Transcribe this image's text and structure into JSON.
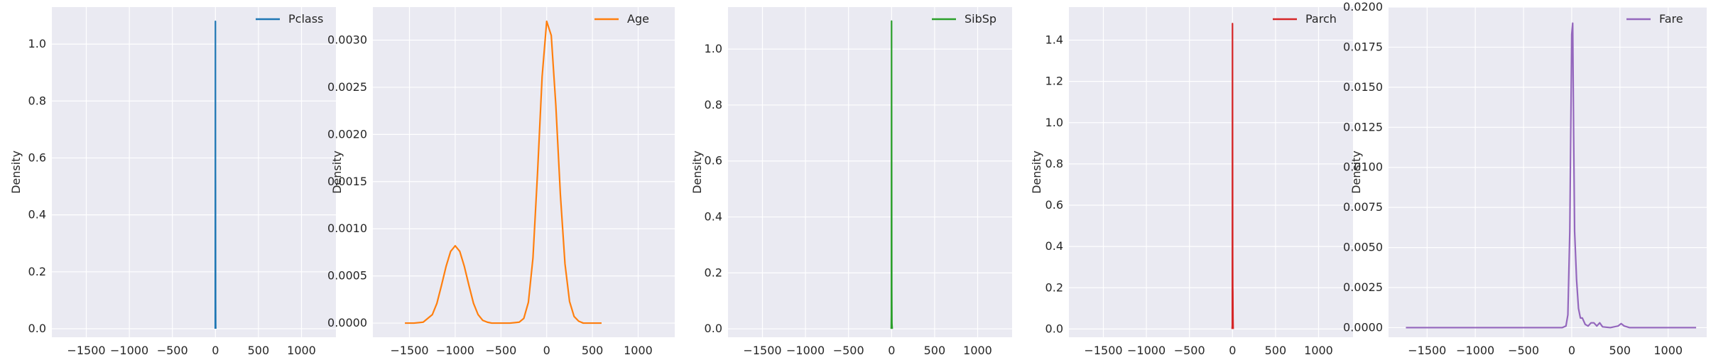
{
  "figure": {
    "background": "#ffffff",
    "axes_face": "#eaeaf2",
    "grid_color": "#ffffff",
    "text_color": "#262626"
  },
  "chart_data": [
    {
      "type": "line",
      "title": "",
      "xlabel": "",
      "ylabel": "Density",
      "legend": {
        "label": "Pclass",
        "position": "top-right"
      },
      "color": "#1f77b4",
      "xlim": [
        -1900,
        1400
      ],
      "ylim": [
        -0.03,
        1.13
      ],
      "xticks": [
        -1500,
        -1000,
        -500,
        0,
        500,
        1000
      ],
      "xtick_labels": [
        "−1500",
        "−1000",
        "−500",
        "0",
        "500",
        "1000"
      ],
      "yticks": [
        0.0,
        0.2,
        0.4,
        0.6,
        0.8,
        1.0
      ],
      "ytick_labels": [
        "0.0",
        "0.2",
        "0.4",
        "0.6",
        "0.8",
        "1.0"
      ],
      "x": [
        -2,
        -1,
        0,
        0.5,
        1,
        1.5,
        2,
        3,
        4
      ],
      "y": [
        0,
        0.45,
        1.08,
        0.55,
        0.5,
        0.3,
        0.1,
        0.02,
        0
      ]
    },
    {
      "type": "line",
      "title": "",
      "xlabel": "",
      "ylabel": "Density",
      "legend": {
        "label": "Age",
        "position": "top-right"
      },
      "color": "#ff7f0e",
      "xlim": [
        -1900,
        1400
      ],
      "ylim": [
        -0.00015,
        0.00335
      ],
      "xticks": [
        -1500,
        -1000,
        -500,
        0,
        500,
        1000
      ],
      "xtick_labels": [
        "−1500",
        "−1000",
        "−500",
        "0",
        "500",
        "1000"
      ],
      "yticks": [
        0.0,
        0.0005,
        0.001,
        0.0015,
        0.002,
        0.0025,
        0.003
      ],
      "ytick_labels": [
        "0.0000",
        "0.0005",
        "0.0010",
        "0.0015",
        "0.0020",
        "0.0025",
        "0.0030"
      ],
      "x": [
        -1550,
        -1450,
        -1350,
        -1250,
        -1200,
        -1150,
        -1100,
        -1050,
        -1000,
        -950,
        -900,
        -850,
        -800,
        -750,
        -700,
        -650,
        -600,
        -500,
        -400,
        -300,
        -250,
        -200,
        -150,
        -100,
        -50,
        0,
        50,
        100,
        150,
        200,
        250,
        300,
        350,
        400,
        450,
        500,
        600
      ],
      "y": [
        0,
        0,
        1e-05,
        9e-05,
        0.00021,
        0.0004,
        0.0006,
        0.00076,
        0.00082,
        0.00076,
        0.0006,
        0.0004,
        0.00021,
        9e-05,
        3e-05,
        1e-05,
        0,
        0,
        0,
        1e-05,
        5e-05,
        0.00022,
        0.00069,
        0.00159,
        0.00261,
        0.0032,
        0.00305,
        0.00231,
        0.00136,
        0.00063,
        0.00023,
        7e-05,
        2e-05,
        0,
        0,
        0,
        0
      ]
    },
    {
      "type": "line",
      "title": "",
      "xlabel": "",
      "ylabel": "Density",
      "legend": {
        "label": "SibSp",
        "position": "top-right"
      },
      "color": "#2ca02c",
      "xlim": [
        -1900,
        1400
      ],
      "ylim": [
        -0.03,
        1.15
      ],
      "xticks": [
        -1500,
        -1000,
        -500,
        0,
        500,
        1000
      ],
      "xtick_labels": [
        "−1500",
        "−1000",
        "−500",
        "0",
        "500",
        "1000"
      ],
      "yticks": [
        0.0,
        0.2,
        0.4,
        0.6,
        0.8,
        1.0
      ],
      "ytick_labels": [
        "0.0",
        "0.2",
        "0.4",
        "0.6",
        "0.8",
        "1.0"
      ],
      "x": [
        -4,
        -2,
        -1,
        0,
        1,
        2,
        3,
        4,
        6,
        8
      ],
      "y": [
        0,
        0.05,
        0.5,
        1.1,
        0.6,
        0.15,
        0.08,
        0.02,
        0.01,
        0
      ]
    },
    {
      "type": "line",
      "title": "",
      "xlabel": "",
      "ylabel": "Density",
      "legend": {
        "label": "Parch",
        "position": "top-right"
      },
      "color": "#d62728",
      "xlim": [
        -1900,
        1400
      ],
      "ylim": [
        -0.04,
        1.56
      ],
      "xticks": [
        -1500,
        -1000,
        -500,
        0,
        500,
        1000
      ],
      "xtick_labels": [
        "−1500",
        "−1000",
        "−500",
        "0",
        "500",
        "1000"
      ],
      "yticks": [
        0.0,
        0.2,
        0.4,
        0.6,
        0.8,
        1.0,
        1.2,
        1.4
      ],
      "ytick_labels": [
        "0.0",
        "0.2",
        "0.4",
        "0.6",
        "0.8",
        "1.0",
        "1.2",
        "1.4"
      ],
      "x": [
        -4,
        -2,
        -1,
        0,
        1,
        2,
        3,
        4,
        6,
        8
      ],
      "y": [
        0,
        0.02,
        0.6,
        1.48,
        0.9,
        0.35,
        0.2,
        0.18,
        0.05,
        0
      ]
    },
    {
      "type": "line",
      "title": "",
      "xlabel": "",
      "ylabel": "Density",
      "legend": {
        "label": "Fare",
        "position": "top-right"
      },
      "color": "#9467bd",
      "xlim": [
        -1900,
        1400
      ],
      "ylim": [
        -0.0006,
        0.02
      ],
      "xticks": [
        -1500,
        -1000,
        -500,
        0,
        500,
        1000
      ],
      "xtick_labels": [
        "−1500",
        "−1000",
        "−500",
        "0",
        "500",
        "1000"
      ],
      "yticks": [
        0.0,
        0.0025,
        0.005,
        0.0075,
        0.01,
        0.0125,
        0.015,
        0.0175,
        0.02
      ],
      "ytick_labels": [
        "0.0000",
        "0.0025",
        "0.0050",
        "0.0075",
        "0.0100",
        "0.0125",
        "0.0150",
        "0.0175",
        "0.0200"
      ],
      "x": [
        -1720,
        -1000,
        -500,
        -100,
        -60,
        -40,
        -20,
        0,
        10,
        20,
        30,
        50,
        70,
        90,
        110,
        140,
        170,
        200,
        230,
        260,
        290,
        320,
        400,
        480,
        512,
        545,
        600,
        1000,
        1290
      ],
      "y": [
        0,
        0,
        0,
        0,
        0.0001,
        0.0008,
        0.006,
        0.0183,
        0.019,
        0.012,
        0.006,
        0.003,
        0.0012,
        0.0006,
        0.0006,
        0.0002,
        0.0001,
        0.0003,
        0.0003,
        0.0001,
        0.0003,
        5e-05,
        0,
        0.0001,
        0.00025,
        0.0001,
        0,
        0,
        0
      ]
    }
  ]
}
